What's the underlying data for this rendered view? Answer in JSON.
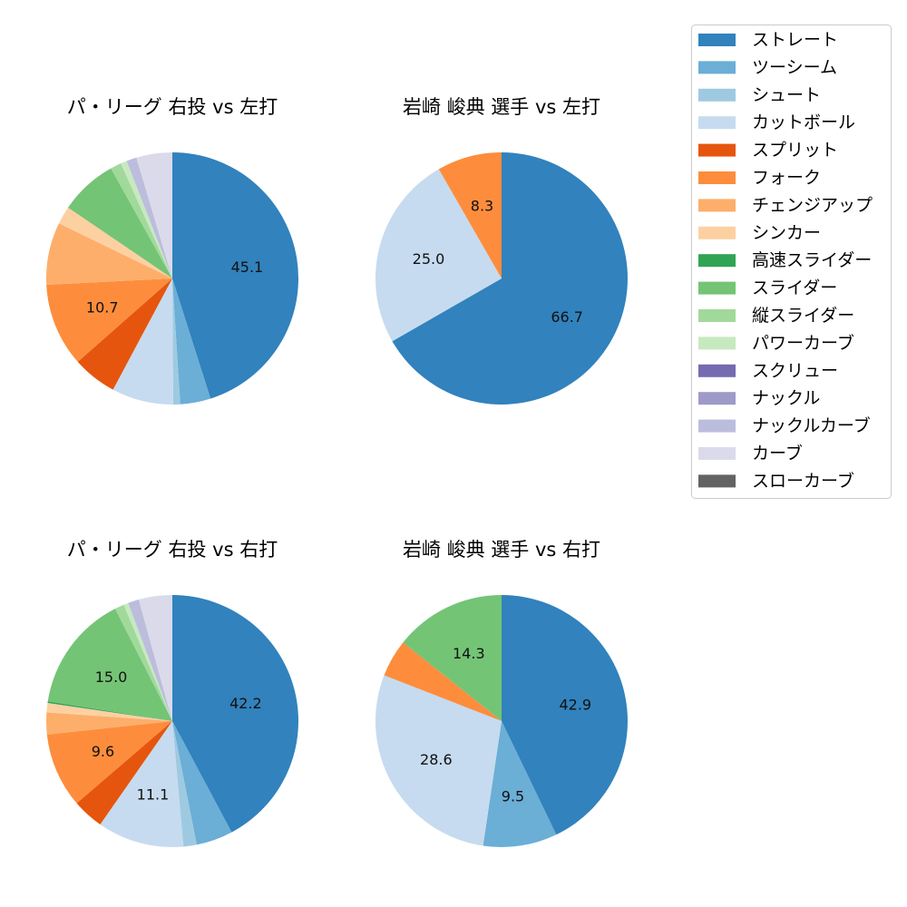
{
  "chart_data": [
    {
      "type": "pie",
      "title": "パ・リーグ 右投 vs 左打",
      "categories": [
        "ストレート",
        "ツーシーム",
        "シュート",
        "カットボール",
        "スプリット",
        "フォーク",
        "チェンジアップ",
        "シンカー",
        "高速スライダー",
        "スライダー",
        "縦スライダー",
        "パワーカーブ",
        "スクリュー",
        "ナックル",
        "ナックルカーブ",
        "カーブ",
        "スローカーブ"
      ],
      "values": [
        45.1,
        3.9,
        0.9,
        7.9,
        5.7,
        10.7,
        8.0,
        2.3,
        0,
        7.4,
        1.4,
        0.8,
        0,
        0,
        1.3,
        4.6,
        0
      ],
      "data_labels": [
        "45.1",
        "",
        "",
        "",
        "",
        "10.7",
        "",
        "",
        "",
        "",
        "",
        "",
        "",
        "",
        "",
        "",
        ""
      ]
    },
    {
      "type": "pie",
      "title": "岩崎 峻典 選手 vs 左打",
      "categories": [
        "ストレート",
        "カットボール",
        "フォーク"
      ],
      "values": [
        66.7,
        25.0,
        8.3
      ],
      "data_labels": [
        "66.7",
        "25.0",
        "8.3"
      ]
    },
    {
      "type": "pie",
      "title": "パ・リーグ 右投 vs 右打",
      "categories": [
        "ストレート",
        "ツーシーム",
        "シュート",
        "カットボール",
        "スプリット",
        "フォーク",
        "チェンジアップ",
        "シンカー",
        "高速スライダー",
        "スライダー",
        "縦スライダー",
        "パワーカーブ",
        "スクリュー",
        "ナックル",
        "ナックルカーブ",
        "カーブ",
        "スローカーブ"
      ],
      "values": [
        42.2,
        4.7,
        1.7,
        11.1,
        4.0,
        9.6,
        2.8,
        1.2,
        0.2,
        15.0,
        1.2,
        0.6,
        0,
        0,
        1.4,
        4.3,
        0
      ],
      "data_labels": [
        "42.2",
        "",
        "",
        "11.1",
        "",
        "9.6",
        "",
        "",
        "",
        "15.0",
        "",
        "",
        "",
        "",
        "",
        "",
        ""
      ]
    },
    {
      "type": "pie",
      "title": "岩崎 峻典 選手 vs 右打",
      "categories": [
        "ストレート",
        "ツーシーム",
        "カットボール",
        "フォーク",
        "スライダー"
      ],
      "values": [
        42.9,
        9.5,
        28.6,
        4.8,
        14.3
      ],
      "data_labels": [
        "42.9",
        "9.5",
        "28.6",
        "",
        "14.3"
      ]
    }
  ],
  "legend": {
    "placement": "top-right",
    "entries": [
      "ストレート",
      "ツーシーム",
      "シュート",
      "カットボール",
      "スプリット",
      "フォーク",
      "チェンジアップ",
      "シンカー",
      "高速スライダー",
      "スライダー",
      "縦スライダー",
      "パワーカーブ",
      "スクリュー",
      "ナックル",
      "ナックルカーブ",
      "カーブ",
      "スローカーブ"
    ]
  },
  "colors": {
    "ストレート": "#3182bd",
    "ツーシーム": "#6baed6",
    "シュート": "#9ecae1",
    "カットボール": "#c6dbef",
    "スプリット": "#e6550d",
    "フォーク": "#fd8d3c",
    "チェンジアップ": "#fdae6b",
    "シンカー": "#fdd0a2",
    "高速スライダー": "#31a354",
    "スライダー": "#74c476",
    "縦スライダー": "#a1d99b",
    "パワーカーブ": "#c7e9c0",
    "スクリュー": "#756bb1",
    "ナックル": "#9e9ac8",
    "ナックルカーブ": "#bcbddc",
    "カーブ": "#dadaeb",
    "スローカーブ": "#636363"
  }
}
